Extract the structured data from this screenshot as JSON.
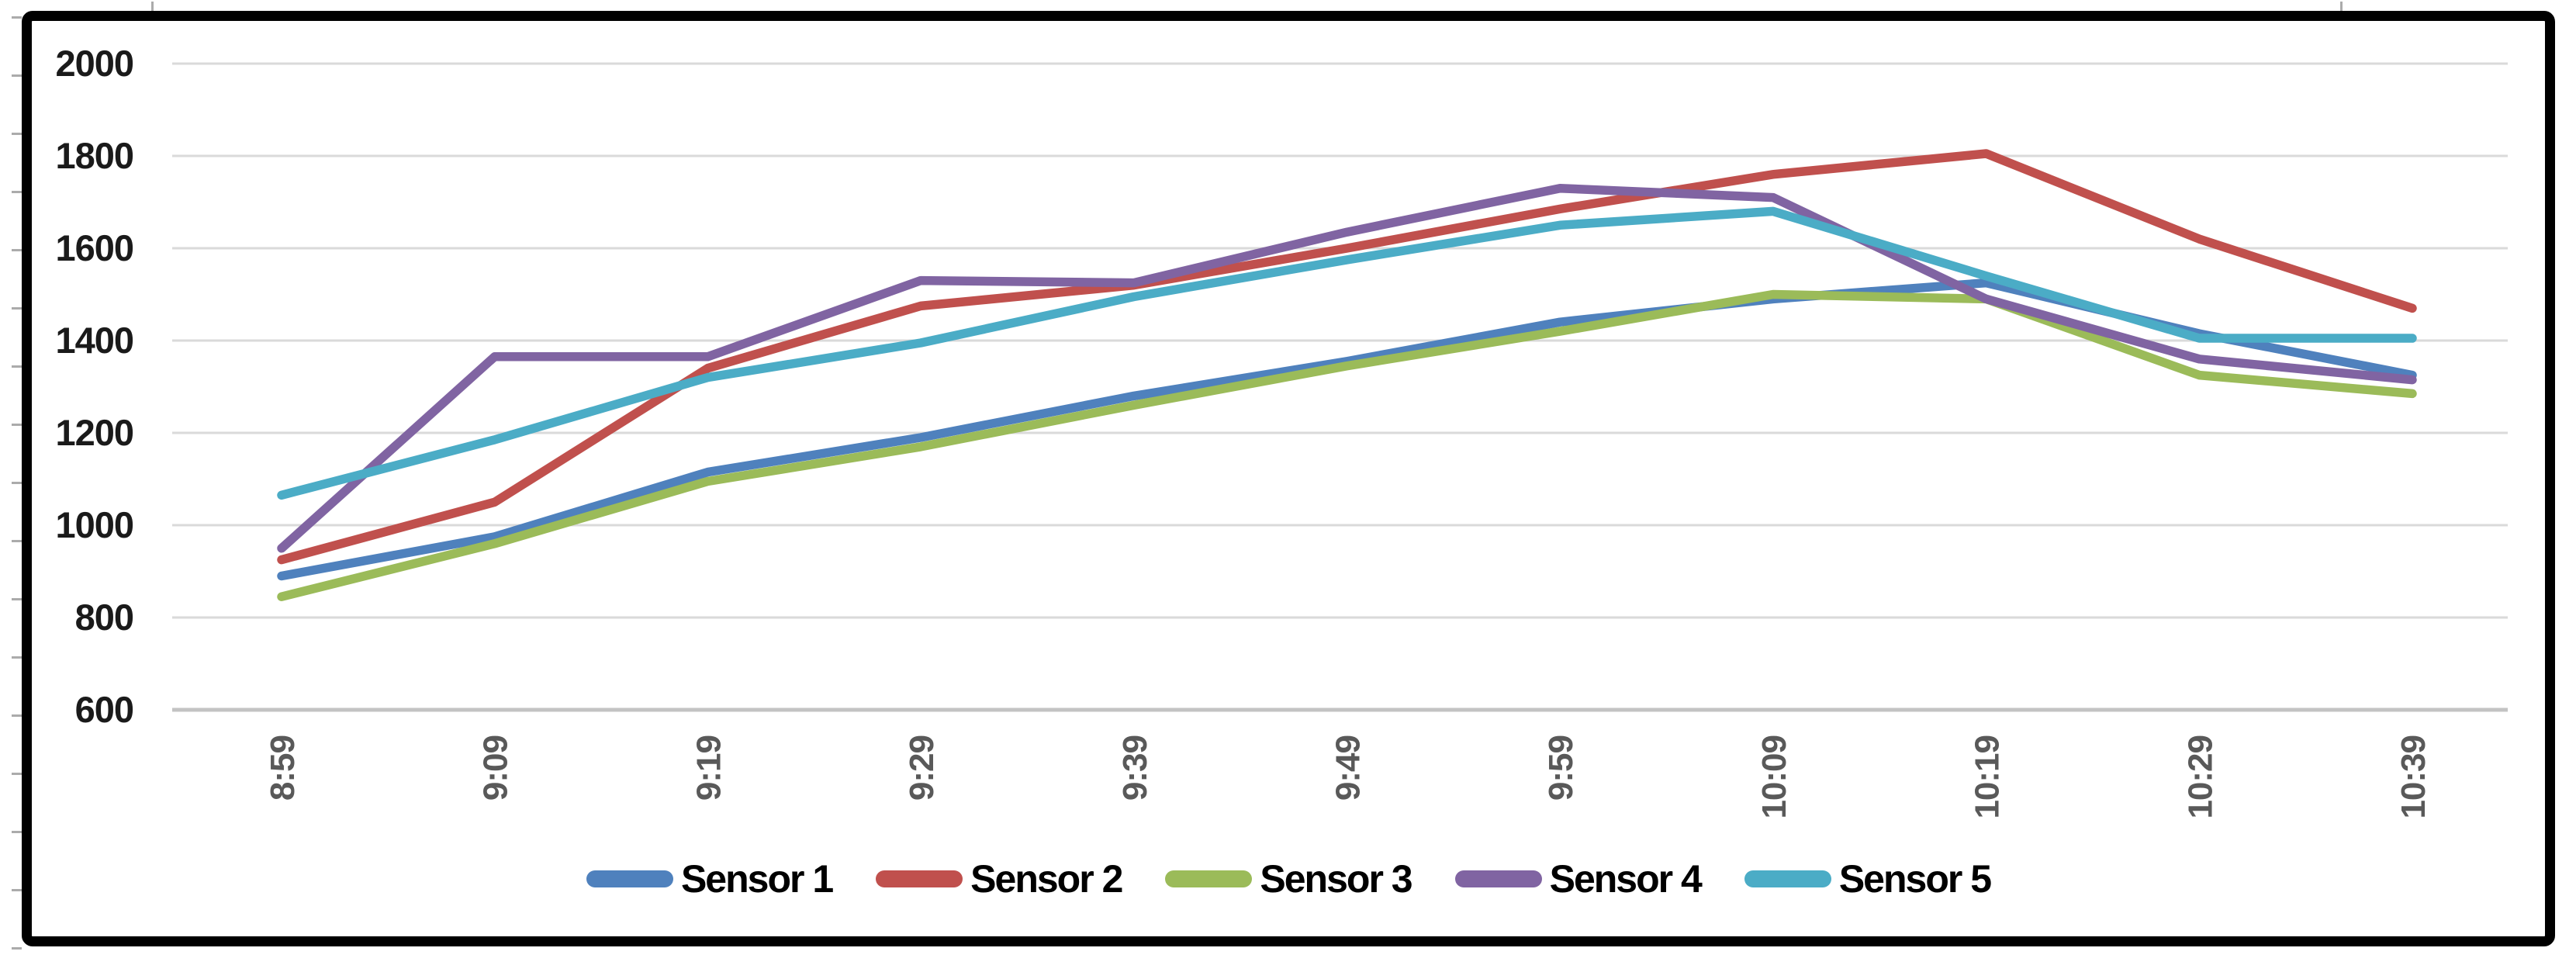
{
  "chart_data": {
    "type": "line",
    "title": "",
    "xlabel": "",
    "ylabel": "",
    "categories": [
      "8:59",
      "9:09",
      "9:19",
      "9:29",
      "9:39",
      "9:49",
      "9:59",
      "10:09",
      "10:19",
      "10:29",
      "10:39"
    ],
    "series": [
      {
        "name": "Sensor 1",
        "color": "#4F81BD",
        "values": [
          890,
          975,
          1115,
          1190,
          1280,
          1355,
          1440,
          1490,
          1525,
          1415,
          1325
        ]
      },
      {
        "name": "Sensor 2",
        "color": "#C0504D",
        "values": [
          925,
          1050,
          1340,
          1475,
          1520,
          1600,
          1685,
          1760,
          1805,
          1620,
          1470
        ]
      },
      {
        "name": "Sensor 3",
        "color": "#9BBB59",
        "values": [
          845,
          960,
          1095,
          1170,
          1260,
          1345,
          1420,
          1500,
          1490,
          1325,
          1285
        ]
      },
      {
        "name": "Sensor 4",
        "color": "#8064A2",
        "values": [
          950,
          1365,
          1365,
          1530,
          1525,
          1635,
          1730,
          1710,
          1490,
          1360,
          1315
        ]
      },
      {
        "name": "Sensor 5",
        "color": "#4BACC6",
        "values": [
          1065,
          1185,
          1320,
          1395,
          1495,
          1575,
          1650,
          1680,
          1540,
          1405,
          1405
        ]
      }
    ],
    "ylim": [
      600,
      2000
    ],
    "ytick_step": 200,
    "ytick_labels": [
      "2000",
      "1800",
      "1600",
      "1400",
      "1200",
      "1000",
      "800",
      "600"
    ],
    "grid": "horizontal",
    "gridline_color": "#dadada",
    "legend_position": "bottom",
    "x_label_rotation": -90,
    "frame_border_color": "#000000",
    "background_color": "#ffffff"
  }
}
